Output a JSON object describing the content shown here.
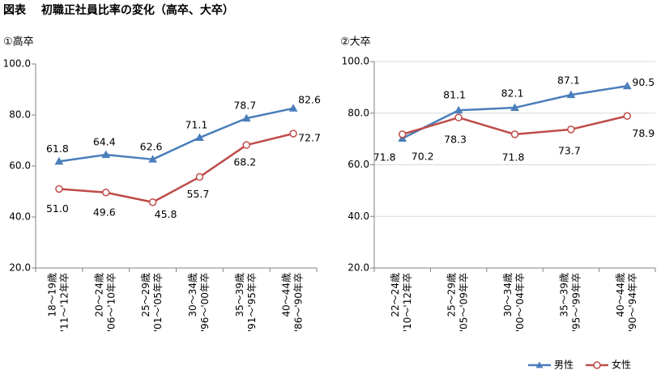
{
  "figure": {
    "title": "図表　 初職正社員比率の変化（高卒、大卒）"
  },
  "legend": {
    "position": "bottom-right",
    "male": "男性",
    "female": "女性"
  },
  "colors": {
    "male": "#4a7ebb",
    "female": "#be4b48",
    "axis": "#808080",
    "grid": "#d9d9d9"
  },
  "chart_data": [
    {
      "type": "line",
      "subtitle": "①高卒",
      "categories": [
        [
          "18～19歳",
          "'11～'12年卒"
        ],
        [
          "20～24歳",
          "'06～'10年卒"
        ],
        [
          "25～29歳",
          "'01～'05年卒"
        ],
        [
          "30～34歳",
          "'96～'00年卒"
        ],
        [
          "35～39歳",
          "'91～'95年卒"
        ],
        [
          "40～44歳",
          "'86～'90年卒"
        ]
      ],
      "series": [
        {
          "name": "男性",
          "values": [
            61.8,
            64.4,
            62.6,
            71.1,
            78.7,
            82.6
          ]
        },
        {
          "name": "女性",
          "values": [
            51.0,
            49.6,
            45.8,
            55.7,
            68.2,
            72.7
          ]
        }
      ],
      "value_labels": {
        "男性": [
          "61.8",
          "64.4",
          "62.6",
          "71.1",
          "78.7",
          "82.6"
        ],
        "女性": [
          "51.0",
          "49.6",
          "45.8",
          "55.7",
          "68.2",
          "72.7"
        ]
      },
      "ylim": [
        20,
        100
      ],
      "yticks": [
        "20.0",
        "40.0",
        "60.0",
        "80.0",
        "100.0"
      ],
      "grid": false
    },
    {
      "type": "line",
      "subtitle": "②大卒",
      "categories": [
        [
          "22～24歳",
          "'10～'12年卒"
        ],
        [
          "25～29歳",
          "'05～'09年卒"
        ],
        [
          "30～34歳",
          "'00～'04年卒"
        ],
        [
          "35～39歳",
          "'95～'99年卒"
        ],
        [
          "40～44歳",
          "'90～'94年卒"
        ]
      ],
      "series": [
        {
          "name": "男性",
          "values": [
            70.2,
            81.1,
            82.1,
            87.1,
            90.5
          ]
        },
        {
          "name": "女性",
          "values": [
            71.8,
            78.3,
            71.8,
            73.7,
            78.9
          ]
        }
      ],
      "value_labels": {
        "男性": [
          "70.2",
          "81.1",
          "82.1",
          "87.1",
          "90.5"
        ],
        "女性": [
          "71.8",
          "78.3",
          "71.8",
          "73.7",
          "78.9"
        ]
      },
      "ylim": [
        20,
        100
      ],
      "yticks": [
        "20.0",
        "40.0",
        "60.0",
        "80.0",
        "100.0"
      ],
      "grid": true
    }
  ]
}
